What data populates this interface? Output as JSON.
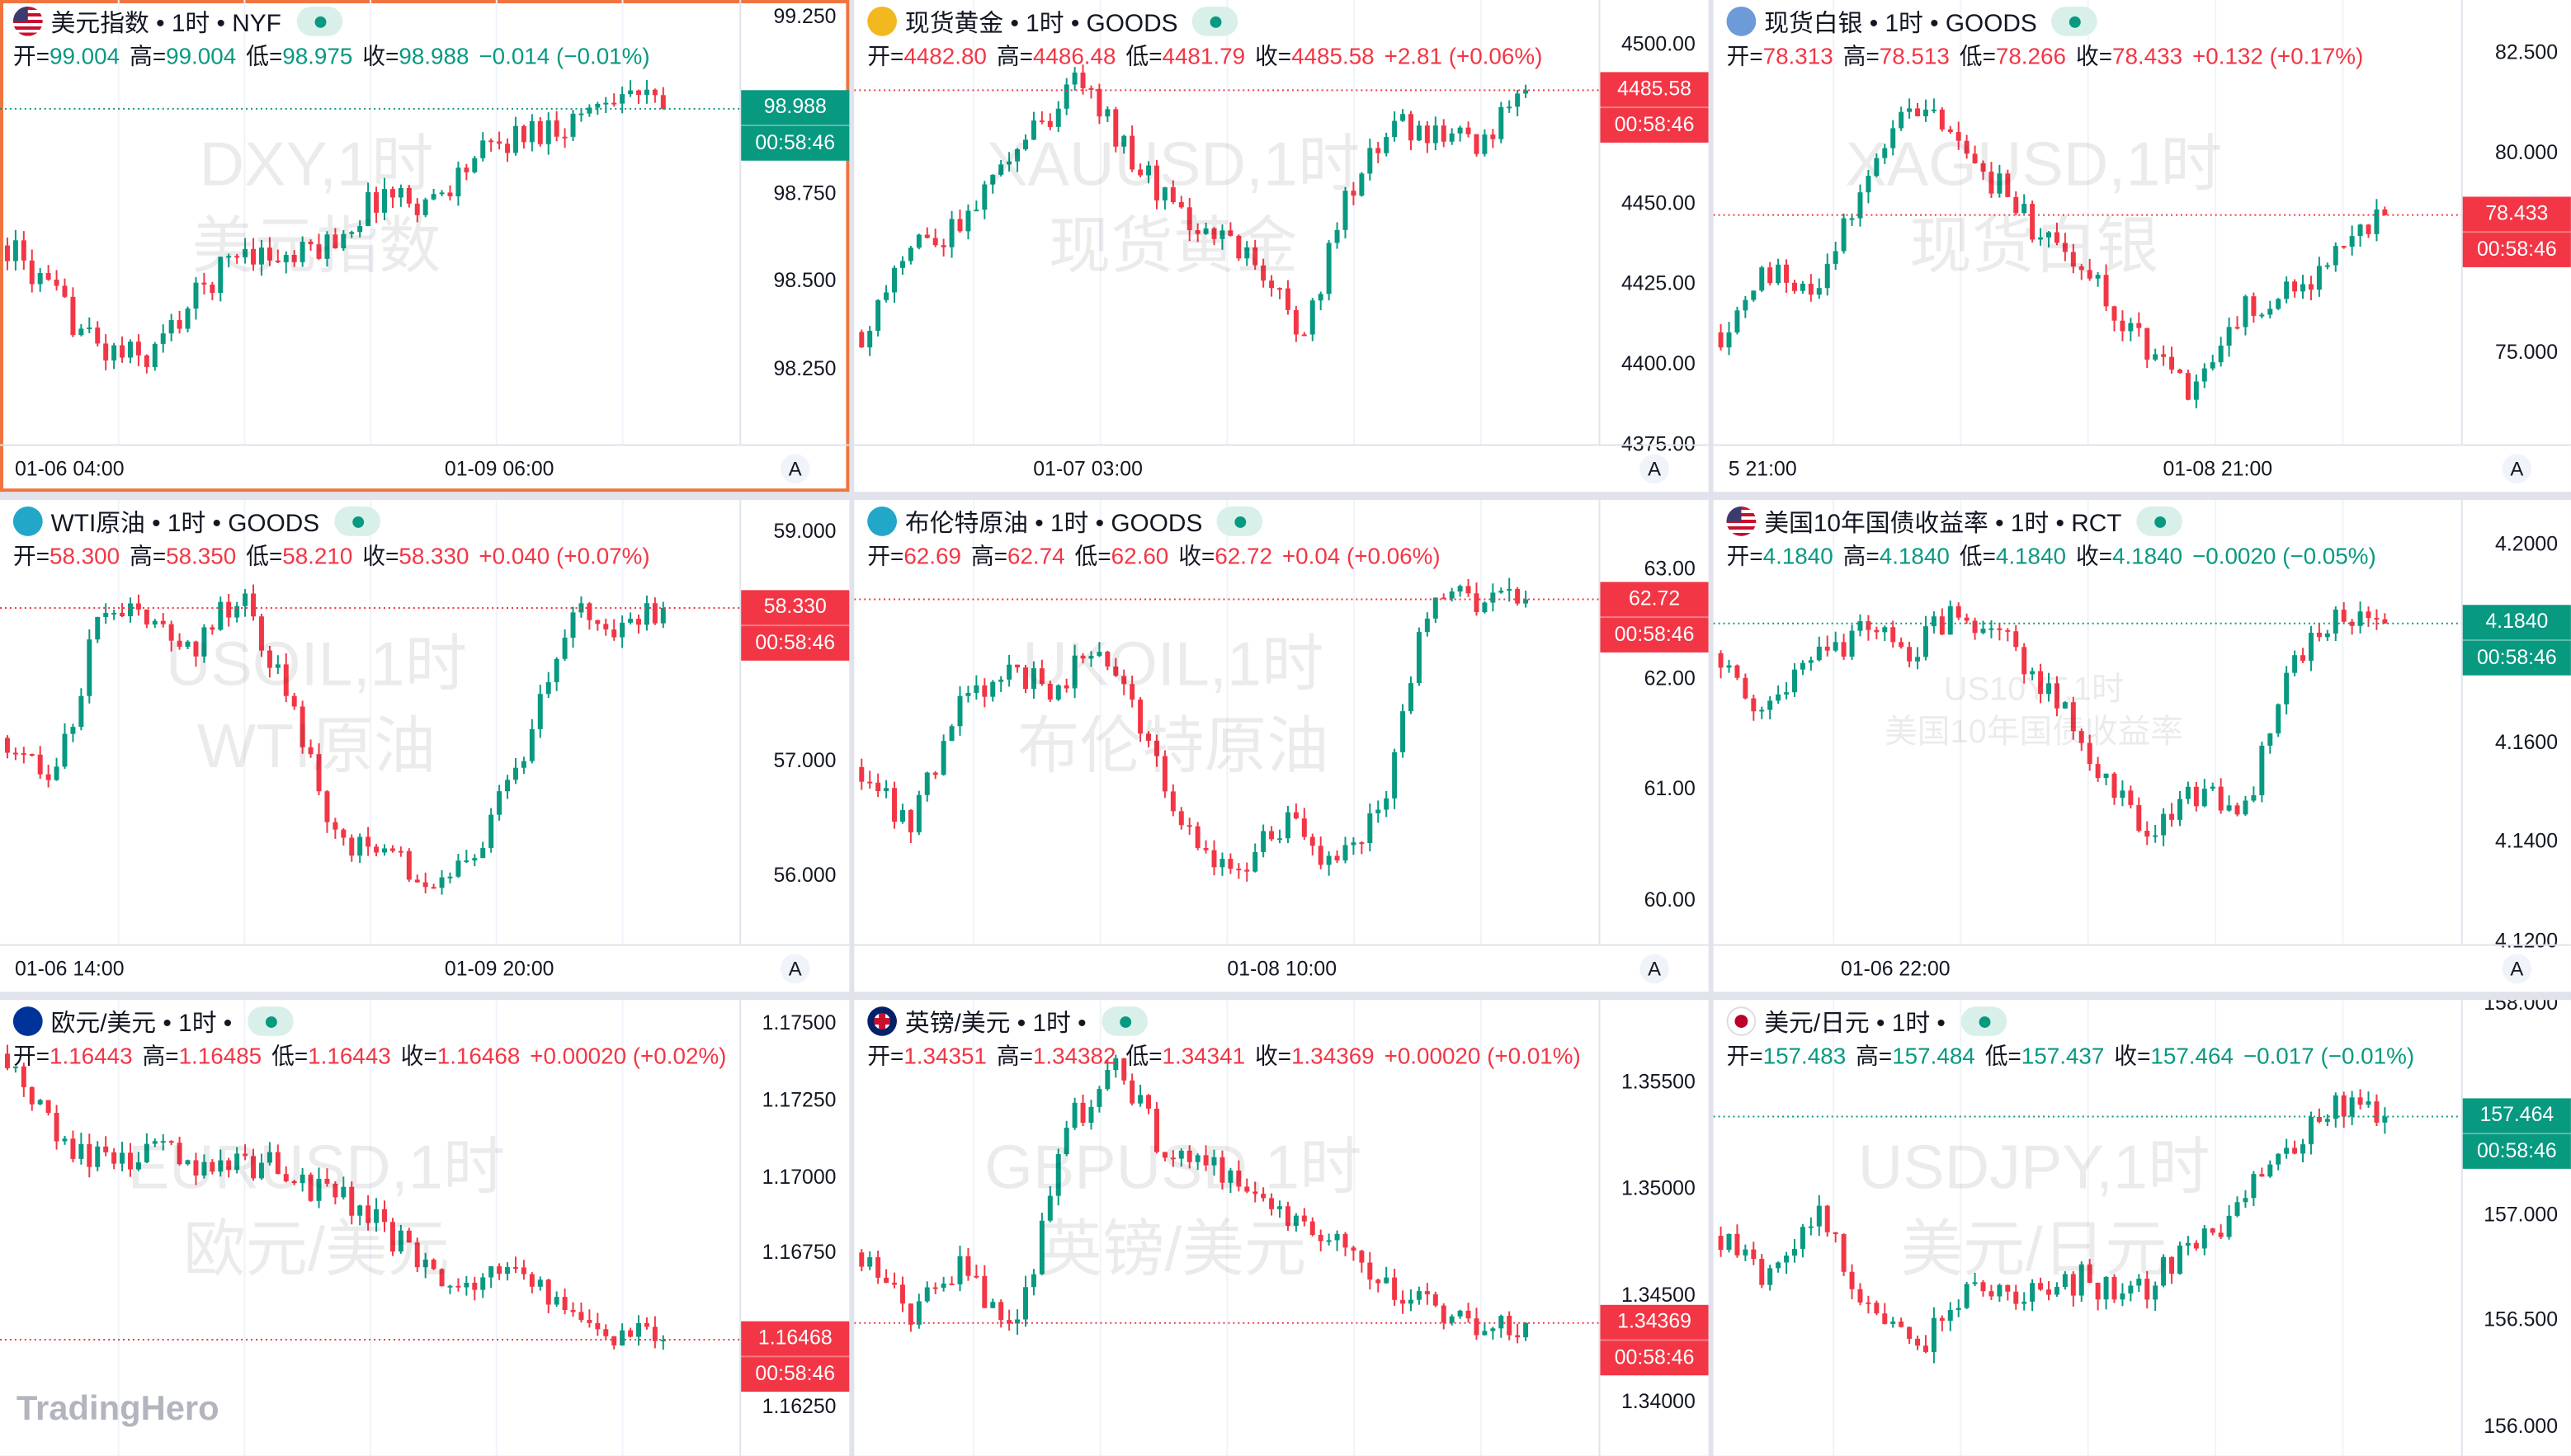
{
  "colors": {
    "up": "#089981",
    "down": "#f23645",
    "grid": "#f0f3fa",
    "selected": "#f0743e"
  },
  "labels": {
    "open": "开=",
    "high": "高=",
    "low": "低=",
    "close": "收=",
    "auto": "A",
    "countdown": "00:58:46"
  },
  "logo": "TradingHero",
  "panels": [
    {
      "title": "美元指数 • 1时 • NYF",
      "icon": "flag-us",
      "dir": "down",
      "open": "99.004",
      "high": "99.004",
      "low": "98.975",
      "close": "98.988",
      "change": "−0.014 (−0.01%)",
      "range": [
        98.031,
        99.297
      ],
      "axis": [
        "99.250",
        "98.750",
        "98.500",
        "98.250"
      ],
      "axis_values": [
        99.25,
        98.75,
        98.5,
        98.25
      ],
      "times": [
        "01-06 04:00",
        "01-09 06:00"
      ],
      "wm": [
        "DXY,1时",
        "美元指数"
      ],
      "last": 98.988,
      "path": [
        98.6,
        98.45,
        98.3,
        98.28,
        98.45,
        98.6,
        98.55,
        98.62,
        98.75,
        98.72,
        98.85,
        98.92,
        98.95,
        99.05,
        98.99
      ],
      "selected": true
    },
    {
      "title": "现货黄金 • 1时 • GOODS",
      "icon": "ic-gold",
      "dir": "up",
      "open": "4482.80",
      "high": "4486.48",
      "low": "4481.79",
      "close": "4485.58",
      "change": "+2.81 (+0.06%)",
      "range": [
        4374.4,
        4513.8
      ],
      "axis": [
        "4500.00",
        "4450.00",
        "4425.00",
        "4400.00",
        "4375.00"
      ],
      "axis_values": [
        4500,
        4450,
        4425,
        4400,
        4375
      ],
      "times": [
        "01-07 03:00"
      ],
      "wm": [
        "XAUUSD,1时",
        "现货黄金"
      ],
      "last": 4485.58,
      "path": [
        4410,
        4435,
        4440,
        4455,
        4475,
        4490,
        4465,
        4450,
        4440,
        4430,
        4410,
        4455,
        4475,
        4470,
        4470,
        4485.6
      ]
    },
    {
      "title": "现货白银 • 1时 • GOODS",
      "icon": "ic-silver",
      "dir": "up",
      "open": "78.313",
      "high": "78.513",
      "low": "78.266",
      "close": "78.433",
      "change": "+0.132 (+0.17%)",
      "range": [
        72.66,
        83.81
      ],
      "axis": [
        "82.500",
        "80.000",
        "75.000"
      ],
      "axis_values": [
        82.5,
        80,
        75
      ],
      "times": [
        "5 21:00",
        "01-08 21:00"
      ],
      "wm": [
        "XAGUSD,1时",
        "现货白银"
      ],
      "last": 78.433,
      "path": [
        75.5,
        77,
        76.5,
        79,
        81.5,
        80,
        79,
        77.5,
        76.5,
        75,
        74,
        76,
        76.5,
        77.5,
        78.4
      ]
    },
    {
      "title": "WTI原油 • 1时 • GOODS",
      "icon": "ic-oil",
      "dir": "up",
      "open": "58.300",
      "high": "58.350",
      "low": "58.210",
      "close": "58.330",
      "change": "+0.040 (+0.07%)",
      "range": [
        55.39,
        59.27
      ],
      "axis": [
        "59.000",
        "57.000",
        "56.000"
      ],
      "axis_values": [
        59,
        57,
        56
      ],
      "times": [
        "01-06 14:00",
        "01-09 20:00"
      ],
      "wm": [
        "USOIL,1时",
        "WTI原油"
      ],
      "last": 58.33,
      "path": [
        57.2,
        56.8,
        58.3,
        58.2,
        58.0,
        58.5,
        57.5,
        56.3,
        56.2,
        56.0,
        56.2,
        57.0,
        58.3,
        58.2,
        58.33
      ]
    },
    {
      "title": "布伦特原油 • 1时 • GOODS",
      "icon": "ic-oil",
      "dir": "up",
      "open": "62.69",
      "high": "62.74",
      "low": "62.60",
      "close": "62.72",
      "change": "+0.04 (+0.06%)",
      "range": [
        59.58,
        63.62
      ],
      "axis": [
        "63.00",
        "62.00",
        "61.00",
        "60.00"
      ],
      "axis_values": [
        63,
        62,
        61,
        60
      ],
      "times": [
        "01-08 10:00"
      ],
      "wm": [
        "UKOIL,1时",
        "布伦特原油"
      ],
      "last": 62.72,
      "path": [
        61.2,
        60.6,
        61.8,
        62.1,
        61.9,
        62.3,
        61.5,
        60.5,
        60.3,
        60.7,
        60.3,
        60.9,
        62.8,
        62.7,
        62.72
      ]
    },
    {
      "title": "美国10年国债收益率 • 1时 • RCT",
      "icon": "flag-us",
      "dir": "down",
      "open": "4.1840",
      "high": "4.1840",
      "low": "4.1840",
      "close": "4.1840",
      "change": "−0.0020 (−0.05%)",
      "range": [
        4.119,
        4.2089
      ],
      "axis": [
        "4.2000",
        "4.1600",
        "4.1400",
        "4.1200"
      ],
      "axis_values": [
        4.2,
        4.16,
        4.14,
        4.12
      ],
      "times": [
        "01-06 22:00"
      ],
      "wm": [
        "US10YT,1时",
        "美国10年国债收益率"
      ],
      "wm_small": true,
      "last": 4.184,
      "path": [
        4.178,
        4.165,
        4.178,
        4.182,
        4.178,
        4.188,
        4.18,
        4.17,
        4.155,
        4.14,
        4.15,
        4.145,
        4.175,
        4.185,
        4.184
      ]
    },
    {
      "title": "欧元/美元 • 1时 •",
      "icon": "flag-eu",
      "dir": "up",
      "open": "1.16443",
      "high": "1.16485",
      "low": "1.16443",
      "close": "1.16468",
      "change": "+0.00020 (+0.02%)",
      "range": [
        1.1609,
        1.17575
      ],
      "axis": [
        "1.17500",
        "1.17250",
        "1.17000",
        "1.16750",
        "1.16250"
      ],
      "axis_values": [
        1.175,
        1.1725,
        1.17,
        1.1675,
        1.1625
      ],
      "times": [],
      "wm": [
        "EURUSD,1时",
        "欧元/美元"
      ],
      "last": 1.16468,
      "path": [
        1.174,
        1.171,
        1.1705,
        1.171,
        1.17,
        1.1705,
        1.1695,
        1.169,
        1.1675,
        1.1665,
        1.167,
        1.166,
        1.165,
        1.1647
      ]
    },
    {
      "title": "英镑/美元 • 1时 •",
      "icon": "flag-gb",
      "dir": "up",
      "open": "1.34351",
      "high": "1.34382",
      "low": "1.34341",
      "close": "1.34369",
      "change": "+0.00020 (+0.01%)",
      "range": [
        1.33746,
        1.35885
      ],
      "axis": [
        "1.35500",
        "1.35000",
        "1.34500",
        "1.34000"
      ],
      "axis_values": [
        1.355,
        1.35,
        1.345,
        1.34
      ],
      "times": [],
      "wm": [
        "GBPUSD,1时",
        "英镑/美元"
      ],
      "last": 1.34369,
      "path": [
        1.347,
        1.344,
        1.3465,
        1.343,
        1.353,
        1.3555,
        1.3515,
        1.351,
        1.349,
        1.348,
        1.3455,
        1.3445,
        1.3435,
        1.3437
      ]
    },
    {
      "title": "美元/日元 • 1时 •",
      "icon": "flag-jp",
      "dir": "down",
      "open": "157.483",
      "high": "157.484",
      "low": "157.437",
      "close": "157.464",
      "change": "−0.017 (−0.01%)",
      "range": [
        155.86,
        158.0155
      ],
      "axis": [
        "158.000",
        "157.000",
        "156.500",
        "156.000"
      ],
      "axis_values": [
        158,
        157,
        156.5,
        156
      ],
      "times": [],
      "wm": [
        "USDJPY,1时",
        "美元/日元"
      ],
      "last": 157.464,
      "path": [
        156.9,
        156.7,
        157.0,
        156.5,
        156.4,
        156.7,
        156.6,
        156.7,
        156.6,
        156.8,
        157.0,
        157.3,
        157.5,
        157.46
      ]
    }
  ]
}
